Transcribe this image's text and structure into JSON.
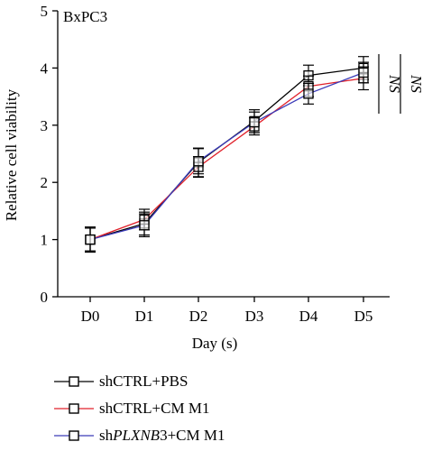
{
  "chart_data": {
    "type": "line",
    "panel_label": "BxPC3",
    "xlabel": "Day (s)",
    "ylabel": "Relative cell viability",
    "categories": [
      "D0",
      "D1",
      "D2",
      "D3",
      "D4",
      "D5"
    ],
    "ylim": [
      0,
      5
    ],
    "yticks": [
      "0",
      "1",
      "2",
      "3",
      "4",
      "5"
    ],
    "series": [
      {
        "name": "shCTRL+PBS",
        "name_prefix": "shCTRL+PBS",
        "name_italic": "",
        "name_suffix": "",
        "color": "#000000",
        "values": [
          1.0,
          1.28,
          2.35,
          3.07,
          3.87,
          4.0
        ],
        "errors": [
          0.22,
          0.2,
          0.25,
          0.2,
          0.18,
          0.2
        ]
      },
      {
        "name": "shCTRL+CM M1",
        "name_prefix": "shCTRL+CM M1",
        "name_italic": "",
        "name_suffix": "",
        "color": "#e0202a",
        "values": [
          1.0,
          1.35,
          2.27,
          2.98,
          3.68,
          3.82
        ],
        "errors": [
          0.2,
          0.18,
          0.18,
          0.15,
          0.18,
          0.2
        ]
      },
      {
        "name": "shPLXNB3+CM M1",
        "name_prefix": "sh",
        "name_italic": "PLXNB",
        "name_suffix": "3+CM M1",
        "color": "#3a3ab8",
        "values": [
          1.0,
          1.25,
          2.37,
          3.05,
          3.55,
          3.92
        ],
        "errors": [
          0.2,
          0.2,
          0.22,
          0.18,
          0.18,
          0.18
        ]
      }
    ],
    "annotations": [
      "NS",
      "NS"
    ],
    "grid": false,
    "legend_position": "bottom-left"
  }
}
